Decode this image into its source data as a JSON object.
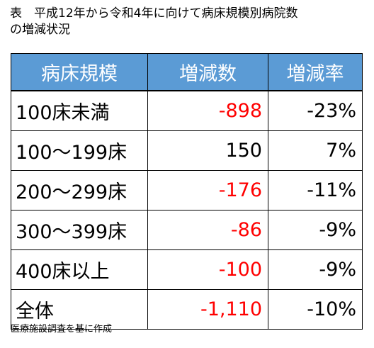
{
  "title": {
    "line1": "表　平成12年から令和4年に向けて病床規模別病院数",
    "line2": "の増減状況"
  },
  "table": {
    "headers": [
      "病床規模",
      "増減数",
      "増減率"
    ],
    "rows": [
      {
        "scale": "100床未満",
        "change": "-898",
        "rate": "-23%",
        "negative": true
      },
      {
        "scale": "100～199床",
        "change": "150",
        "rate": "7%",
        "negative": false
      },
      {
        "scale": "200～299床",
        "change": "-176",
        "rate": "-11%",
        "negative": true
      },
      {
        "scale": "300～399床",
        "change": "-86",
        "rate": "-9%",
        "negative": true
      },
      {
        "scale": "400床以上",
        "change": "-100",
        "rate": "-9%",
        "negative": true
      },
      {
        "scale": "全体",
        "change": "-1,110",
        "rate": "-10%",
        "negative": true
      }
    ]
  },
  "footnote": "医療施設調査を基に作成",
  "colors": {
    "header_bg": "#5b9bd5",
    "header_text": "#ffffff",
    "negative_text": "#ff0000",
    "positive_text": "#000000"
  }
}
